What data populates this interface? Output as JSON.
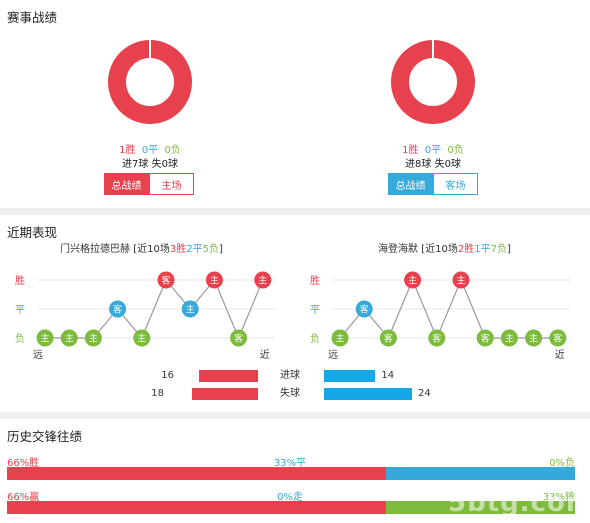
{
  "record": {
    "title": "赛事战绩",
    "left": {
      "w_label": "1胜",
      "d_label": "0平",
      "l_label": "0负",
      "goals": "进7球 失0球",
      "btn_total": "总战绩",
      "btn_venue": "主场",
      "win_ratio": 1,
      "color": "#e8414e"
    },
    "right": {
      "w_label": "1胜",
      "d_label": "0平",
      "l_label": "0负",
      "goals": "进8球 失0球",
      "btn_total": "总战绩",
      "btn_venue": "客场",
      "win_ratio": 1,
      "color": "#35a9d9"
    }
  },
  "recent": {
    "title": "近期表现",
    "y_labels": [
      "胜",
      "平",
      "负"
    ],
    "far_label": "远",
    "near_label": "近",
    "left": {
      "team": "门兴格拉德巴赫",
      "summary_pre": "[近10场",
      "w": "3胜",
      "d": "2平",
      "l": "5负",
      "summary_post": "]",
      "results": [
        "L",
        "L",
        "L",
        "D",
        "L",
        "W",
        "D",
        "W",
        "L",
        "W"
      ],
      "venues": [
        "主",
        "主",
        "主",
        "客",
        "主",
        "客",
        "主",
        "主",
        "客",
        "主"
      ]
    },
    "right": {
      "team": "海登海默",
      "summary_pre": "[近10场",
      "w": "2胜",
      "d": "1平",
      "l": "7负",
      "summary_post": "]",
      "results": [
        "L",
        "D",
        "L",
        "W",
        "L",
        "W",
        "L",
        "L",
        "L",
        "L"
      ],
      "venues": [
        "主",
        "客",
        "客",
        "主",
        "客",
        "主",
        "客",
        "主",
        "主",
        "客"
      ]
    },
    "goals": {
      "label_scored": "进球",
      "label_conceded": "失球",
      "left_scored": 16,
      "left_conceded": 18,
      "right_scored": 14,
      "right_conceded": 24,
      "left_color": "#e8414e",
      "right_color": "#16a8e6"
    },
    "colors": {
      "W": "#e8414e",
      "D": "#35a9d9",
      "L": "#7dbb3d"
    }
  },
  "history": {
    "title": "历史交锋往绩",
    "row1": {
      "left_label": "66%胜",
      "mid_label": "33%平",
      "right_label": "0%负",
      "win": 66,
      "draw": 33,
      "loss": 0
    },
    "row2": {
      "left_label": "66%赢",
      "mid_label": "0%走",
      "right_label": "33%输",
      "win": 66,
      "draw": 0,
      "loss": 33
    }
  },
  "watermark": "5btg.com"
}
